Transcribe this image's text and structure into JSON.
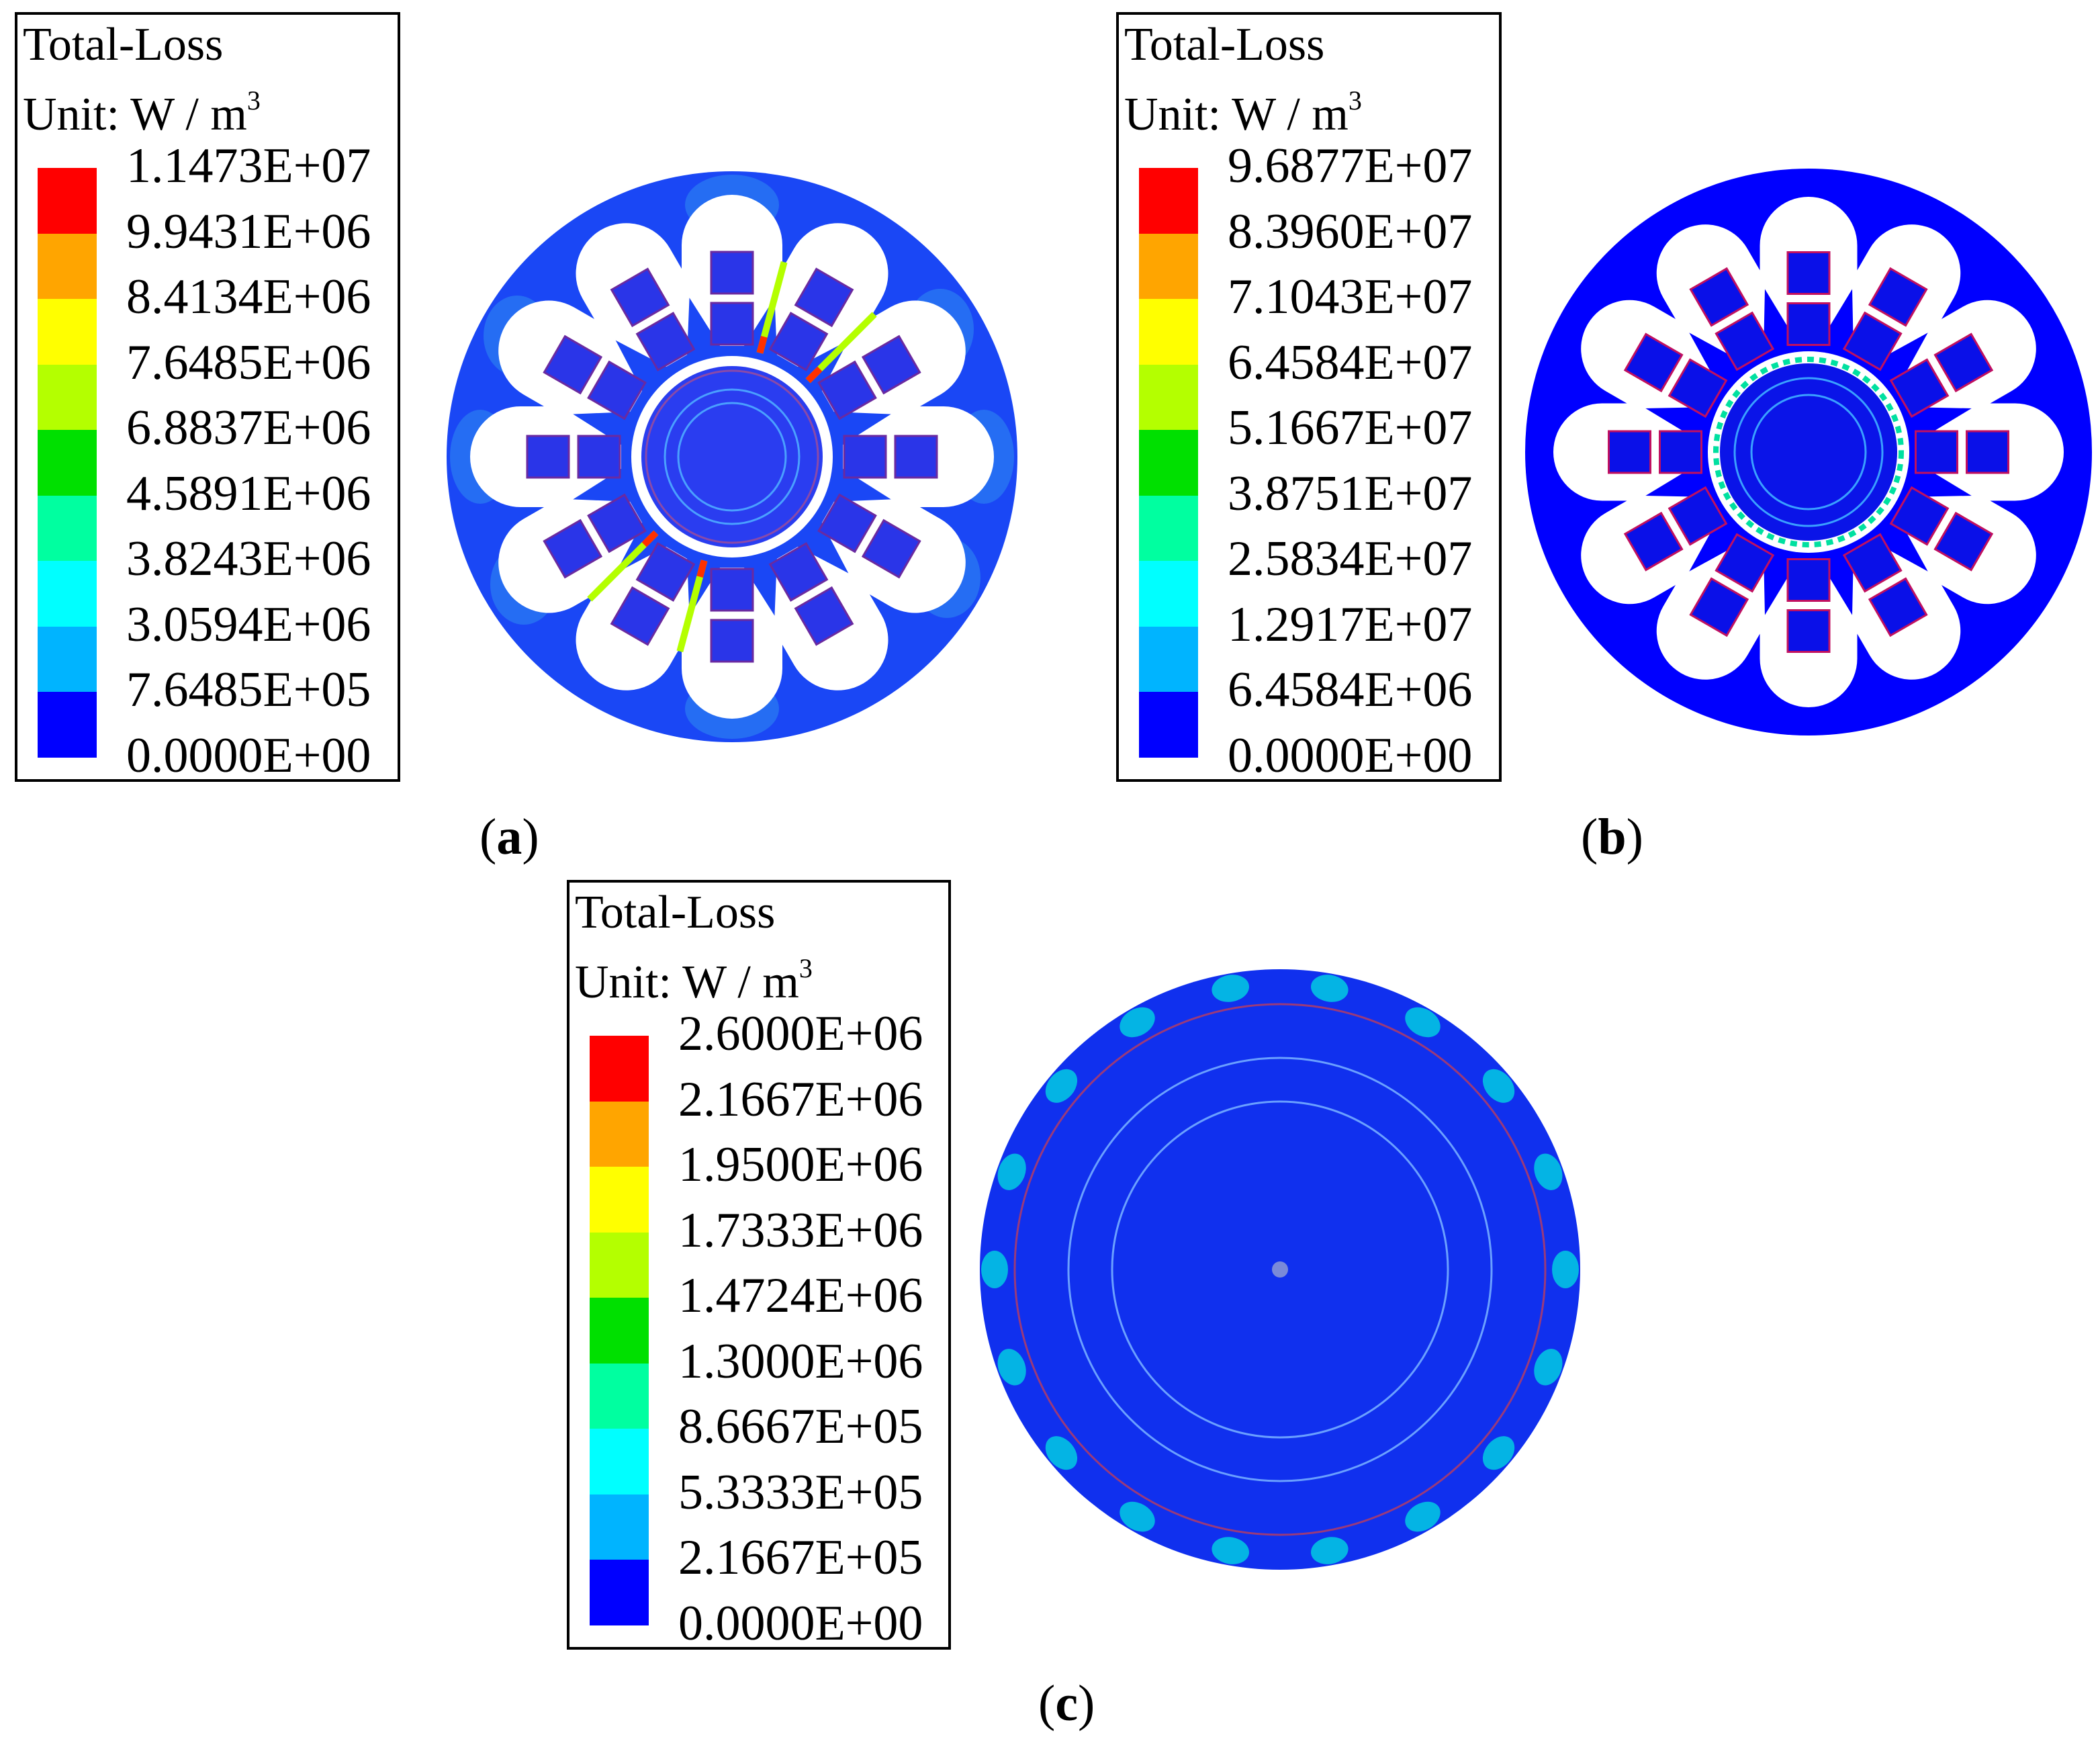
{
  "panels": [
    {
      "id": "a",
      "caption_letter": "a",
      "legend": {
        "title": "Total-Loss",
        "unit": "Unit: W / m",
        "unit_exp": "3",
        "values": [
          "1.1473E+07",
          "9.9431E+06",
          "8.4134E+06",
          "7.6485E+06",
          "6.8837E+06",
          "4.5891E+06",
          "3.8243E+06",
          "3.0594E+06",
          "7.6485E+05",
          "0.0000E+00"
        ]
      }
    },
    {
      "id": "b",
      "caption_letter": "b",
      "legend": {
        "title": "Total-Loss",
        "unit": "Unit: W / m",
        "unit_exp": "3",
        "values": [
          "9.6877E+07",
          "8.3960E+07",
          "7.1043E+07",
          "6.4584E+07",
          "5.1667E+07",
          "3.8751E+07",
          "2.5834E+07",
          "1.2917E+07",
          "6.4584E+06",
          "0.0000E+00"
        ]
      }
    },
    {
      "id": "c",
      "caption_letter": "c",
      "legend": {
        "title": "Total-Loss",
        "unit": "Unit: W / m",
        "unit_exp": "3",
        "values": [
          "2.6000E+06",
          "2.1667E+06",
          "1.9500E+06",
          "1.7333E+06",
          "1.4724E+06",
          "1.3000E+06",
          "8.6667E+05",
          "5.3333E+05",
          "2.1667E+05",
          "0.0000E+00"
        ]
      }
    }
  ],
  "colormap": [
    "#ff0000",
    "#ffa500",
    "#ffff00",
    "#b4ff00",
    "#00e000",
    "#00ffa0",
    "#00ffff",
    "#00b4ff",
    "#0000ff"
  ]
}
